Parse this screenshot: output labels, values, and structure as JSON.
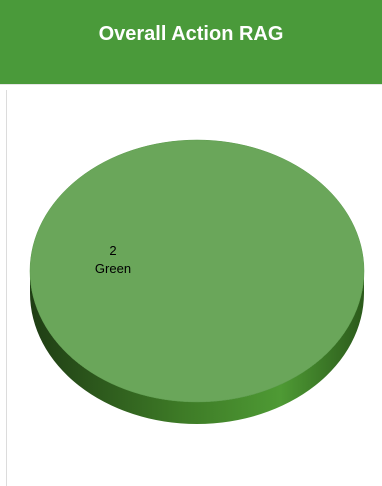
{
  "header": {
    "title": "Overall Action RAG"
  },
  "colors": {
    "header_bg": "#4a9a3a",
    "slice_green_top": "#6aa65a",
    "slice_green_side_dark": "#1f3d14",
    "slice_green_side_light": "#4e9a34"
  },
  "chart_data": {
    "type": "pie",
    "style": "3d",
    "title": "Overall Action RAG",
    "slices": [
      {
        "label": "Green",
        "value": 2,
        "color": "#6aa65a"
      }
    ],
    "data_labels": [
      {
        "value_text": "2",
        "category_text": "Green"
      }
    ]
  }
}
